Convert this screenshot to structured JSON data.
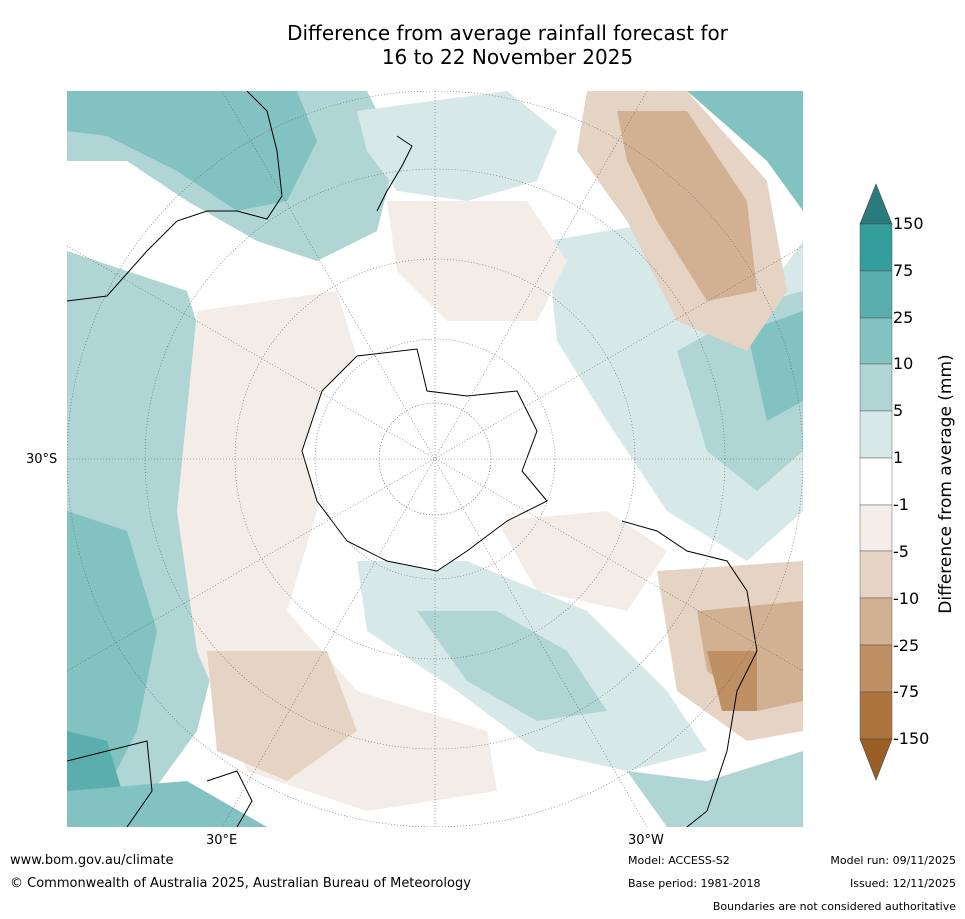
{
  "title": {
    "line1": "Difference from average rainfall forecast for",
    "line2": "16 to 22 November 2025"
  },
  "map": {
    "projection": "South polar stereographic",
    "lat_label": "30°S",
    "lon_labels": {
      "east": "30°E",
      "west": "30°W"
    }
  },
  "legend": {
    "label": "Difference from average (mm)",
    "ticks": [
      "150",
      "75",
      "25",
      "10",
      "5",
      "1",
      "-1",
      "-5",
      "-10",
      "-25",
      "-75",
      "-150"
    ],
    "colors": {
      "above_150": "#2a7b7b",
      "75_150": "#349e9c",
      "25_75": "#5aaeae",
      "10_25": "#82c2c1",
      "5_10": "#afd6d5",
      "1_5": "#d6e9e8",
      "neutral": "#ffffff",
      "m5_m1": "#f4ece6",
      "m10_m5": "#e5d3c3",
      "m25_m10": "#d2b193",
      "m75_m25": "#bf9063",
      "m150_m75": "#ae743f",
      "below_m150": "#9a5f25"
    }
  },
  "footer": {
    "url": "www.bom.gov.au/climate",
    "copyright": "© Commonwealth of Australia 2025, Australian Bureau of Meteorology",
    "model": "Model: ACCESS-S2",
    "base_period": "Base period: 1981-2018",
    "model_run": "Model run: 09/11/2025",
    "issued": "Issued: 12/11/2025",
    "disclaimer": "Boundaries are not considered authoritative"
  }
}
